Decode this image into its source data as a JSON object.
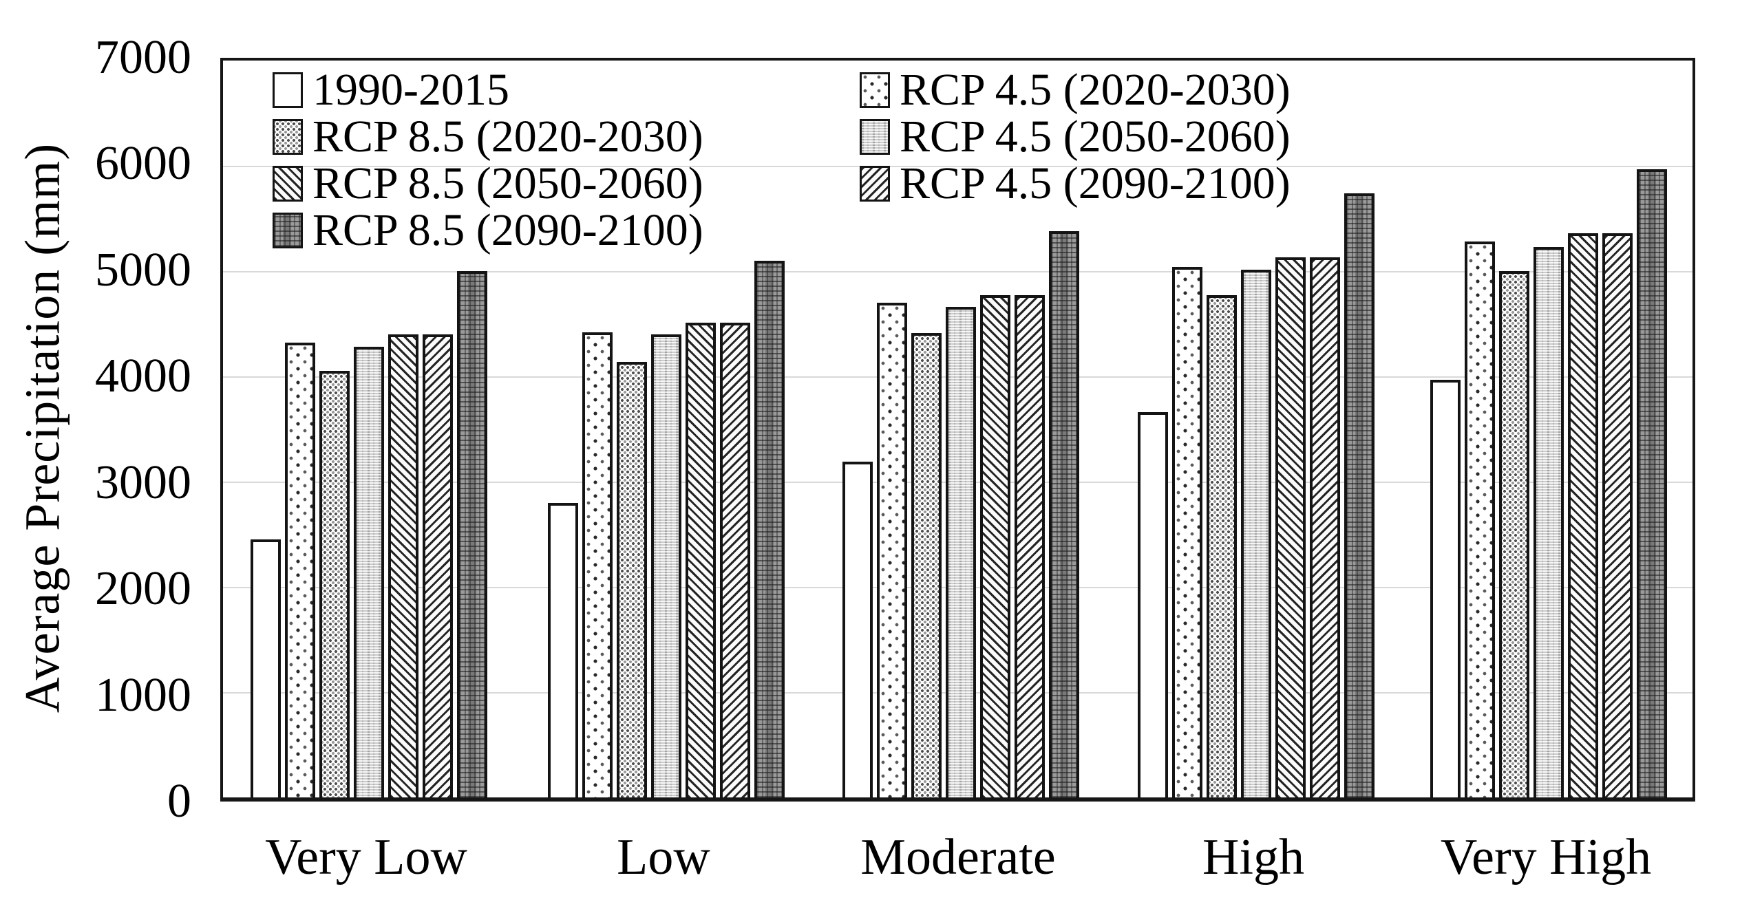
{
  "chart_data": {
    "type": "bar",
    "title": "",
    "xlabel": "",
    "ylabel": "Average Precipitation (mm)",
    "ylim": [
      0,
      7000
    ],
    "ytick_interval": 1000,
    "yticks": [
      0,
      1000,
      2000,
      3000,
      4000,
      5000,
      6000,
      7000
    ],
    "grid": "horizontal",
    "legend_position": "top-left-inside",
    "legend_columns": [
      [
        0,
        2,
        4,
        6
      ],
      [
        1,
        3,
        5
      ]
    ],
    "categories": [
      "Very Low",
      "Low",
      "Moderate",
      "High",
      "Very High"
    ],
    "series": [
      {
        "name": "1990-2015",
        "pattern": "plain-white",
        "values": [
          2450,
          2800,
          3190,
          3660,
          3970
        ]
      },
      {
        "name": "RCP 4.5 (2020-2030)",
        "pattern": "sparse-dots",
        "values": [
          4320,
          4420,
          4700,
          5040,
          5280
        ]
      },
      {
        "name": "RCP 8.5 (2020-2030)",
        "pattern": "fine-dots",
        "values": [
          4050,
          4140,
          4410,
          4770,
          5000
        ]
      },
      {
        "name": "RCP 4.5 (2050-2060)",
        "pattern": "light-plaid",
        "values": [
          4280,
          4400,
          4660,
          5010,
          5230
        ]
      },
      {
        "name": "RCP 8.5 (2050-2060)",
        "pattern": "diagonal-forward",
        "values": [
          4400,
          4510,
          4770,
          5130,
          5360
        ]
      },
      {
        "name": "RCP 4.5 (2090-2100)",
        "pattern": "diagonal-backward",
        "values": [
          4400,
          4510,
          4770,
          5130,
          5360
        ]
      },
      {
        "name": "RCP 8.5 (2090-2100)",
        "pattern": "dark-plaid",
        "values": [
          5000,
          5100,
          5380,
          5740,
          5970
        ]
      }
    ],
    "colors": {
      "background": "#ffffff",
      "text": "#000000",
      "bar_outline": "#141414",
      "gridline": "#d9d9d9"
    }
  }
}
